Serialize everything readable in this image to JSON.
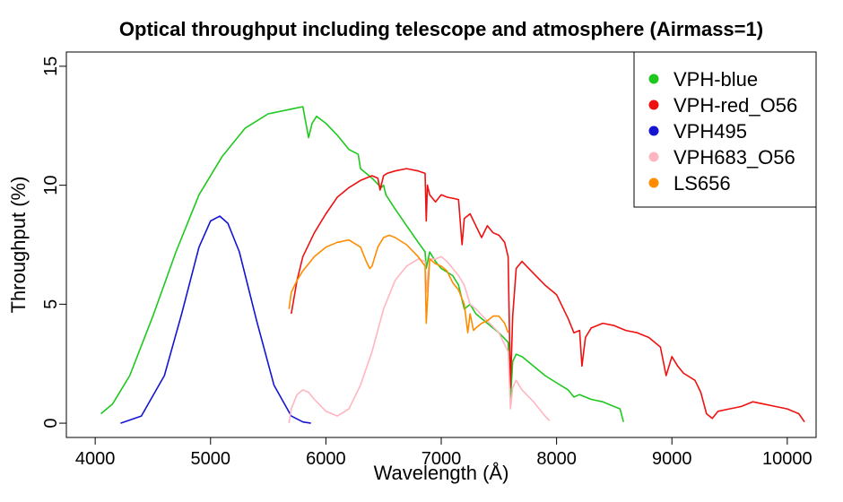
{
  "chart_data": {
    "type": "line",
    "title": "Optical throughput including telescope and atmosphere (Airmass=1)",
    "xlabel": "Wavelength (Å)",
    "ylabel": "Throughput (%)",
    "xlim": [
      3750,
      10250
    ],
    "ylim": [
      -0.6,
      15.6
    ],
    "xticks": [
      4000,
      5000,
      6000,
      7000,
      8000,
      9000,
      10000
    ],
    "xtick_labels": [
      "4000",
      "5000",
      "6000",
      "7000",
      "8000",
      "9000",
      "10000"
    ],
    "yticks": [
      0,
      5,
      10,
      15
    ],
    "ytick_labels": [
      "0",
      "5",
      "10",
      "15"
    ],
    "legend_position": "top-right",
    "grid": false,
    "series": [
      {
        "name": "VPH-blue",
        "color": "#1ec81e",
        "x": [
          4050,
          4150,
          4300,
          4500,
          4700,
          4900,
          5100,
          5300,
          5500,
          5700,
          5800,
          5850,
          5880,
          5920,
          6000,
          6100,
          6200,
          6280,
          6300,
          6400,
          6480,
          6500,
          6520,
          6600,
          6700,
          6800,
          6860,
          6870,
          6900,
          6950,
          7000,
          7100,
          7150,
          7200,
          7250,
          7300,
          7400,
          7500,
          7580,
          7600,
          7620,
          7650,
          7700,
          7800,
          7900,
          8000,
          8100,
          8150,
          8200,
          8300,
          8400,
          8500,
          8550,
          8580
        ],
        "y": [
          0.4,
          0.8,
          2.0,
          4.5,
          7.2,
          9.6,
          11.2,
          12.4,
          13.0,
          13.2,
          13.3,
          12.0,
          12.6,
          12.9,
          12.6,
          12.1,
          11.5,
          11.3,
          10.7,
          10.3,
          9.9,
          10.0,
          9.6,
          9.0,
          8.3,
          7.6,
          7.2,
          6.5,
          7.2,
          6.8,
          6.5,
          6.2,
          5.8,
          4.8,
          5.0,
          4.6,
          4.2,
          3.8,
          3.4,
          1.0,
          2.6,
          2.9,
          2.8,
          2.4,
          2.0,
          1.7,
          1.4,
          1.1,
          1.2,
          1.0,
          0.9,
          0.7,
          0.6,
          0.05
        ]
      },
      {
        "name": "VPH-red_O56",
        "color": "#ee1111",
        "x": [
          5700,
          5750,
          5800,
          5900,
          6000,
          6100,
          6200,
          6300,
          6400,
          6450,
          6470,
          6500,
          6530,
          6600,
          6700,
          6800,
          6860,
          6870,
          6880,
          6900,
          6950,
          7000,
          7050,
          7150,
          7180,
          7200,
          7250,
          7300,
          7350,
          7400,
          7450,
          7500,
          7550,
          7580,
          7600,
          7620,
          7650,
          7700,
          7800,
          7900,
          8000,
          8100,
          8150,
          8200,
          8220,
          8250,
          8300,
          8400,
          8500,
          8600,
          8700,
          8800,
          8900,
          8950,
          9000,
          9050,
          9100,
          9200,
          9250,
          9300,
          9350,
          9400,
          9500,
          9600,
          9700,
          9800,
          9900,
          10000,
          10100,
          10150
        ],
        "y": [
          4.6,
          6.0,
          7.0,
          8.0,
          8.8,
          9.5,
          9.9,
          10.2,
          10.4,
          10.3,
          9.8,
          10.4,
          10.5,
          10.6,
          10.7,
          10.6,
          10.5,
          8.5,
          10.0,
          9.6,
          9.3,
          9.6,
          9.5,
          9.4,
          7.5,
          8.6,
          8.8,
          8.3,
          7.8,
          8.3,
          8.0,
          7.9,
          7.6,
          7.0,
          1.5,
          4.5,
          6.5,
          6.8,
          6.3,
          5.8,
          5.4,
          4.4,
          3.8,
          3.9,
          2.4,
          3.6,
          4.0,
          4.2,
          4.1,
          3.9,
          3.8,
          3.6,
          3.2,
          2.0,
          2.8,
          2.4,
          2.1,
          1.8,
          1.3,
          0.4,
          0.2,
          0.5,
          0.6,
          0.7,
          0.9,
          0.8,
          0.7,
          0.6,
          0.4,
          0.05
        ]
      },
      {
        "name": "VPH495",
        "color": "#1414d2",
        "x": [
          4220,
          4400,
          4600,
          4750,
          4900,
          5000,
          5080,
          5150,
          5250,
          5400,
          5550,
          5700,
          5800,
          5870
        ],
        "y": [
          0.0,
          0.3,
          2.0,
          4.6,
          7.4,
          8.5,
          8.7,
          8.4,
          7.2,
          4.3,
          1.6,
          0.3,
          0.05,
          0.0
        ],
        "legend_swatch": "blue"
      },
      {
        "name": "VPH683_O56",
        "color": "#ffb6c1",
        "x": [
          5680,
          5700,
          5750,
          5800,
          5850,
          5900,
          6000,
          6100,
          6200,
          6300,
          6400,
          6500,
          6600,
          6700,
          6800,
          6860,
          6870,
          6900,
          6950,
          7000,
          7050,
          7100,
          7150,
          7200,
          7250,
          7300,
          7400,
          7500,
          7580,
          7600,
          7620,
          7650,
          7700,
          7800,
          7900,
          7940
        ],
        "y": [
          0.0,
          0.6,
          1.2,
          1.4,
          1.3,
          1.0,
          0.5,
          0.3,
          0.6,
          1.6,
          3.0,
          4.8,
          6.0,
          6.6,
          6.9,
          6.8,
          5.5,
          6.9,
          6.9,
          7.0,
          6.8,
          6.5,
          6.2,
          5.8,
          5.0,
          4.8,
          4.3,
          3.8,
          3.0,
          0.6,
          1.5,
          1.8,
          1.4,
          0.9,
          0.3,
          0.1
        ]
      },
      {
        "name": "LS656",
        "color": "#ff8c00",
        "x": [
          5680,
          5700,
          5750,
          5800,
          5900,
          6000,
          6100,
          6200,
          6300,
          6350,
          6380,
          6400,
          6450,
          6500,
          6550,
          6600,
          6700,
          6800,
          6860,
          6870,
          6900,
          6950,
          7000,
          7050,
          7100,
          7150,
          7200,
          7230,
          7250,
          7280,
          7300,
          7350,
          7400,
          7450,
          7500,
          7550,
          7580
        ],
        "y": [
          4.8,
          5.5,
          6.0,
          6.4,
          7.0,
          7.4,
          7.6,
          7.7,
          7.4,
          6.8,
          6.5,
          6.6,
          7.4,
          7.8,
          7.9,
          7.8,
          7.5,
          7.0,
          6.6,
          4.2,
          6.9,
          6.7,
          6.6,
          6.4,
          5.9,
          5.6,
          5.0,
          3.8,
          4.6,
          3.9,
          4.0,
          4.2,
          4.3,
          4.5,
          4.5,
          4.2,
          3.8
        ]
      }
    ]
  }
}
